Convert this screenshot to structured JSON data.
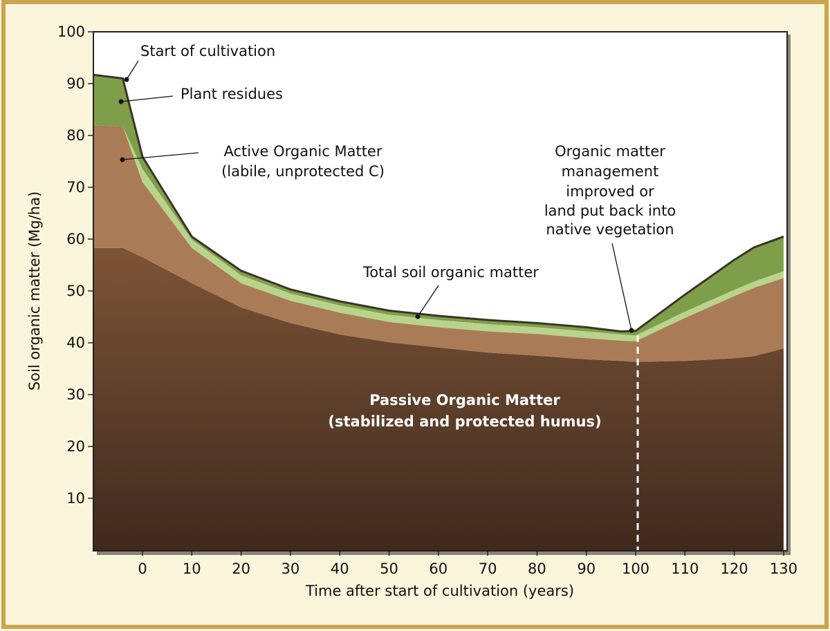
{
  "colors": {
    "page_background": "#fbf5dc",
    "frame_border": "#c9a54e",
    "plot_background": "#ffffff",
    "plant_residues": "#7f9e4a",
    "active_om": "#b8d48a",
    "active_om_brown": "#a97c57",
    "passive_om_top": "#7c5436",
    "passive_om_bottom": "#3f2a1e",
    "total_line": "#3a3328"
  },
  "chart_data": {
    "type": "area",
    "xlabel": "Time after start of cultivation (years)",
    "ylabel": "Soil organic matter (Mg/ha)",
    "xlim": [
      -10,
      130
    ],
    "ylim": [
      0,
      100
    ],
    "x_ticks": [
      "0",
      "10",
      "20",
      "30",
      "40",
      "50",
      "60",
      "70",
      "80",
      "90",
      "100",
      "110",
      "120",
      "130"
    ],
    "y_ticks": [
      "10",
      "20",
      "30",
      "40",
      "50",
      "60",
      "70",
      "80",
      "90",
      "100"
    ],
    "x": [
      -10,
      -4,
      0,
      10,
      20,
      30,
      40,
      50,
      60,
      70,
      80,
      90,
      97,
      100,
      110,
      120,
      124,
      130
    ],
    "series": [
      {
        "name": "Passive Organic Matter",
        "values": [
          58.3,
          58.3,
          56.5,
          51.5,
          46.8,
          43.8,
          41.6,
          40.1,
          39.1,
          38.1,
          37.5,
          36.8,
          36.5,
          36.3,
          36.5,
          37.0,
          37.4,
          38.9
        ]
      },
      {
        "name": "Active Organic Matter",
        "values": [
          82.0,
          81.7,
          71.0,
          58.3,
          51.5,
          48.1,
          45.8,
          44.0,
          43.0,
          42.2,
          41.7,
          40.9,
          40.4,
          40.3,
          44.8,
          49.0,
          50.6,
          52.5
        ]
      },
      {
        "name": "Active Organic Matter (light)",
        "values": [
          82.0,
          81.7,
          73.5,
          59.9,
          53.0,
          49.5,
          47.2,
          45.4,
          44.4,
          43.6,
          43.0,
          42.2,
          41.6,
          41.4,
          46.0,
          50.2,
          51.8,
          53.8
        ]
      },
      {
        "name": "Total soil organic matter",
        "values": [
          91.7,
          91.0,
          75.9,
          60.5,
          53.9,
          50.3,
          48.0,
          46.2,
          45.2,
          44.4,
          43.8,
          43.0,
          42.2,
          42.3,
          49.3,
          56.0,
          58.4,
          60.5
        ]
      }
    ],
    "annotations": {
      "start_cultivation": "Start of cultivation",
      "plant_residues": "Plant residues",
      "active_om_line1": "Active Organic Matter",
      "active_om_line2": "(labile, unprotected C)",
      "management_line1": "Organic matter",
      "management_line2": "management",
      "management_line3": "improved or",
      "management_line4": "land put back into",
      "management_line5": "native vegetation",
      "total_som": "Total soil organic matter",
      "passive_line1": "Passive Organic Matter",
      "passive_line2": "(stabilized and protected humus)"
    },
    "event_x": 100,
    "grid": false,
    "legend": "none"
  }
}
